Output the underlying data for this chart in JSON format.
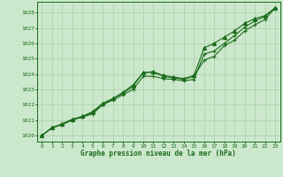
{
  "x": [
    0,
    1,
    2,
    3,
    4,
    5,
    6,
    7,
    8,
    9,
    10,
    11,
    12,
    13,
    14,
    15,
    16,
    17,
    18,
    19,
    20,
    21,
    22,
    23
  ],
  "line1": [
    1020.0,
    1020.5,
    1020.7,
    1021.0,
    1021.2,
    1021.4,
    1022.0,
    1022.4,
    1022.8,
    1023.3,
    1024.1,
    1024.1,
    1023.85,
    1023.75,
    1023.65,
    1023.85,
    1024.9,
    1025.15,
    1025.85,
    1026.2,
    1026.8,
    1027.2,
    1027.55,
    1028.3
  ],
  "line2": [
    1020.0,
    1020.5,
    1020.75,
    1021.05,
    1021.2,
    1021.5,
    1022.0,
    1022.3,
    1022.65,
    1023.0,
    1023.85,
    1023.85,
    1023.7,
    1023.65,
    1023.55,
    1023.65,
    1025.3,
    1025.5,
    1026.0,
    1026.5,
    1027.05,
    1027.45,
    1027.75,
    1028.3
  ],
  "line_smooth": [
    1020.0,
    1020.5,
    1020.75,
    1021.05,
    1021.25,
    1021.55,
    1022.1,
    1022.4,
    1022.75,
    1023.2,
    1024.1,
    1024.15,
    1023.9,
    1023.8,
    1023.7,
    1023.9,
    1025.7,
    1026.0,
    1026.4,
    1026.8,
    1027.3,
    1027.6,
    1027.8,
    1028.3
  ],
  "line_color": "#1a6b1a",
  "bg_color": "#cce8cc",
  "grid_color": "#aacfaa",
  "xlabel": "Graphe pression niveau de la mer (hPa)",
  "xlabel_color": "#1a6b1a",
  "ylabel_ticks": [
    1020,
    1021,
    1022,
    1023,
    1024,
    1025,
    1026,
    1027,
    1028
  ],
  "ylim": [
    1019.6,
    1028.7
  ],
  "xlim": [
    -0.5,
    23.5
  ],
  "xticks": [
    0,
    1,
    2,
    3,
    4,
    5,
    6,
    7,
    8,
    9,
    10,
    11,
    12,
    13,
    14,
    15,
    16,
    17,
    18,
    19,
    20,
    21,
    22,
    23
  ]
}
